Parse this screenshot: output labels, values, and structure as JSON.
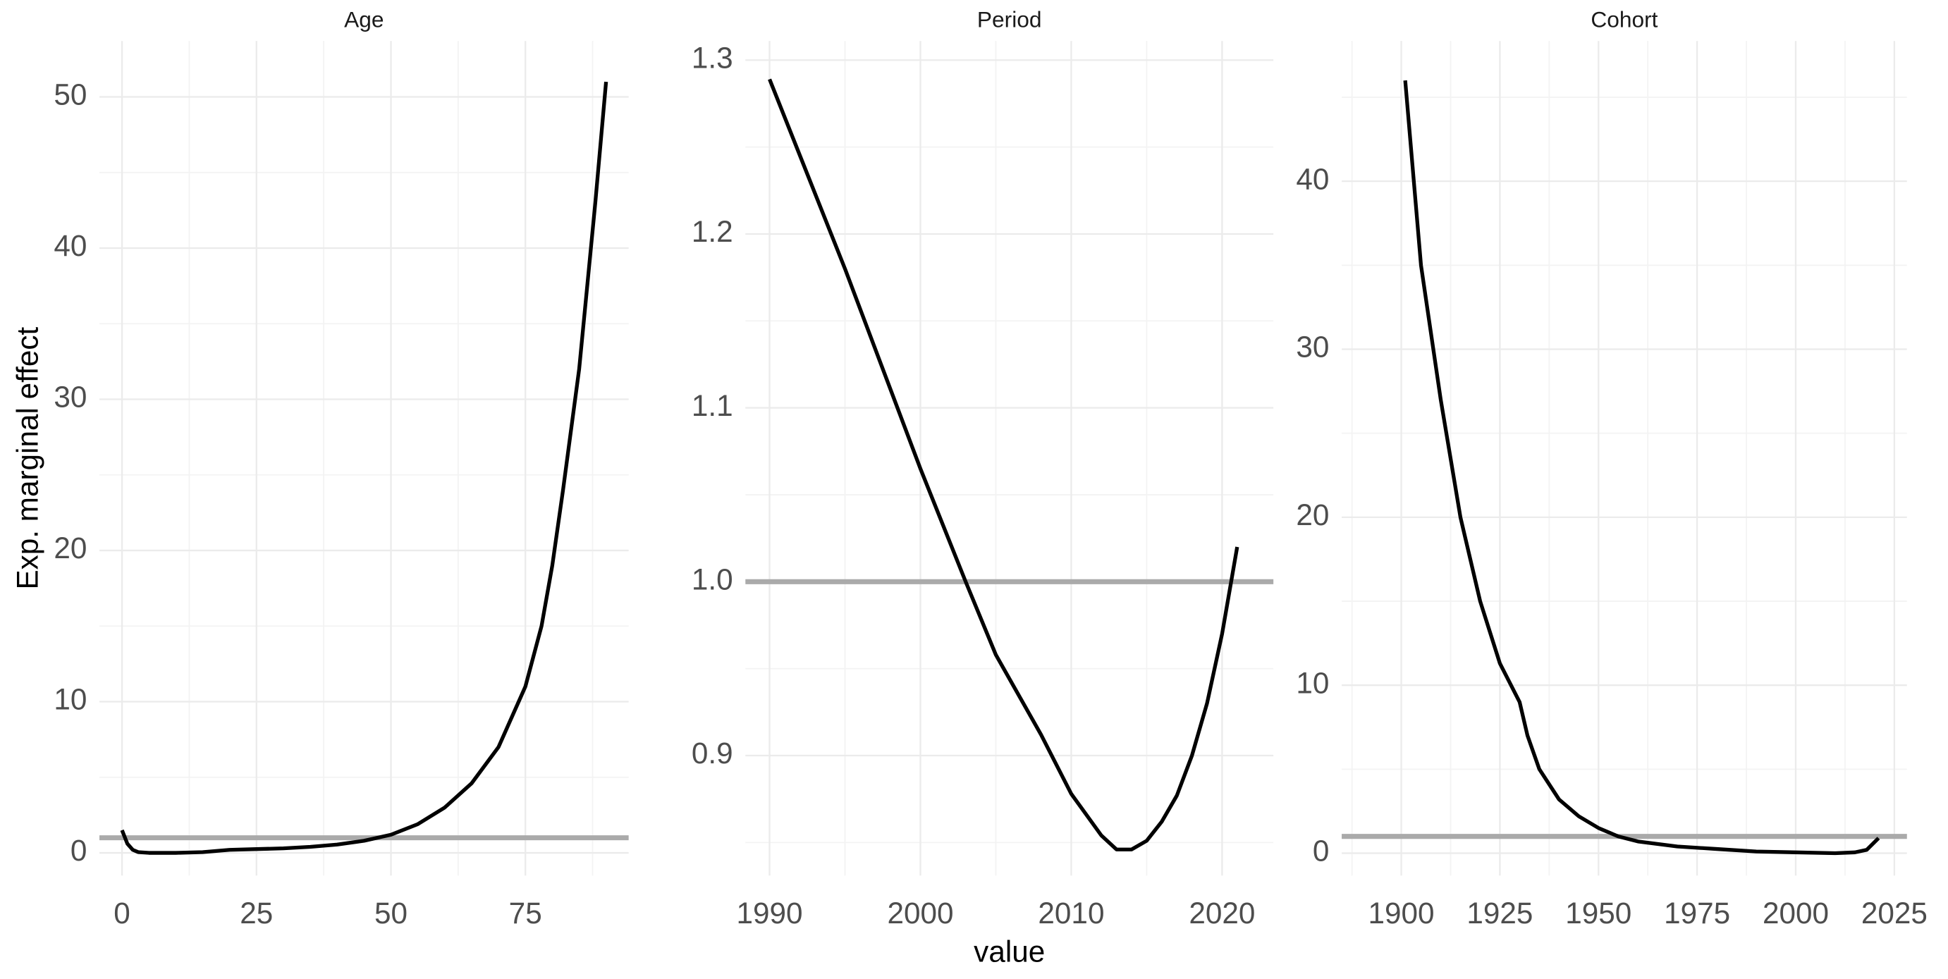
{
  "chart_data": [
    {
      "type": "line",
      "title": "Age",
      "ylabel": "Exp. marginal effect",
      "x": [
        0,
        1,
        2,
        3,
        5,
        10,
        15,
        20,
        25,
        30,
        35,
        40,
        45,
        50,
        55,
        60,
        65,
        70,
        75,
        78,
        80,
        82,
        85,
        88,
        90
      ],
      "series": [
        {
          "color": "#000000",
          "values": [
            1.5,
            0.6,
            0.2,
            0.05,
            0.0,
            0.0,
            0.05,
            0.2,
            0.25,
            0.3,
            0.4,
            0.55,
            0.8,
            1.2,
            1.9,
            3.0,
            4.6,
            7.0,
            11.0,
            15,
            19,
            24,
            32,
            43,
            51
          ]
        }
      ],
      "hline": {
        "value": 1,
        "color": "#aaaaaa"
      },
      "xlim": [
        -4.2,
        94.2
      ],
      "ylim": [
        -1.5,
        53.7
      ],
      "xticks": [
        0,
        25,
        50,
        75
      ],
      "yticks": [
        0,
        10,
        20,
        30,
        40,
        50
      ],
      "grid": true
    },
    {
      "type": "line",
      "title": "Period",
      "xlabel": "value",
      "x": [
        1990,
        1995,
        2000,
        2003,
        2005,
        2008,
        2010,
        2012,
        2013,
        2014,
        2015,
        2016,
        2017,
        2018,
        2019,
        2020,
        2021
      ],
      "series": [
        {
          "color": "#000000",
          "values": [
            1.289,
            1.18,
            1.065,
            1.0,
            0.958,
            0.912,
            0.878,
            0.854,
            0.846,
            0.846,
            0.851,
            0.862,
            0.877,
            0.9,
            0.93,
            0.97,
            1.02
          ]
        }
      ],
      "hline": {
        "value": 1,
        "color": "#aaaaaa"
      },
      "xlim": [
        1988.4,
        2023.4
      ],
      "ylim": [
        0.831,
        1.311
      ],
      "xticks": [
        1990,
        2000,
        2010,
        2020
      ],
      "yticks": [
        0.9,
        {
          "value": 1,
          "label": "1.0"
        },
        1.1,
        1.2,
        1.3
      ],
      "grid": true
    },
    {
      "type": "line",
      "title": "Cohort",
      "x": [
        1901,
        1905,
        1910,
        1915,
        1920,
        1925,
        1930,
        1932,
        1935,
        1940,
        1945,
        1950,
        1955,
        1960,
        1970,
        1980,
        1990,
        2000,
        2010,
        2015,
        2018,
        2021
      ],
      "series": [
        {
          "color": "#000000",
          "values": [
            46,
            35,
            27,
            20,
            15,
            11.3,
            9,
            7,
            5,
            3.2,
            2.2,
            1.5,
            1.0,
            0.7,
            0.4,
            0.25,
            0.1,
            0.05,
            0.0,
            0.05,
            0.2,
            0.9
          ]
        }
      ],
      "hline": {
        "value": 1,
        "color": "#aaaaaa"
      },
      "xlim": [
        1884.9,
        2028.2
      ],
      "ylim": [
        -1.33,
        48.35
      ],
      "xticks": [
        1900,
        1925,
        1950,
        1975,
        2000,
        2025
      ],
      "yticks": [
        0,
        10,
        20,
        30,
        40
      ],
      "grid": true
    }
  ]
}
